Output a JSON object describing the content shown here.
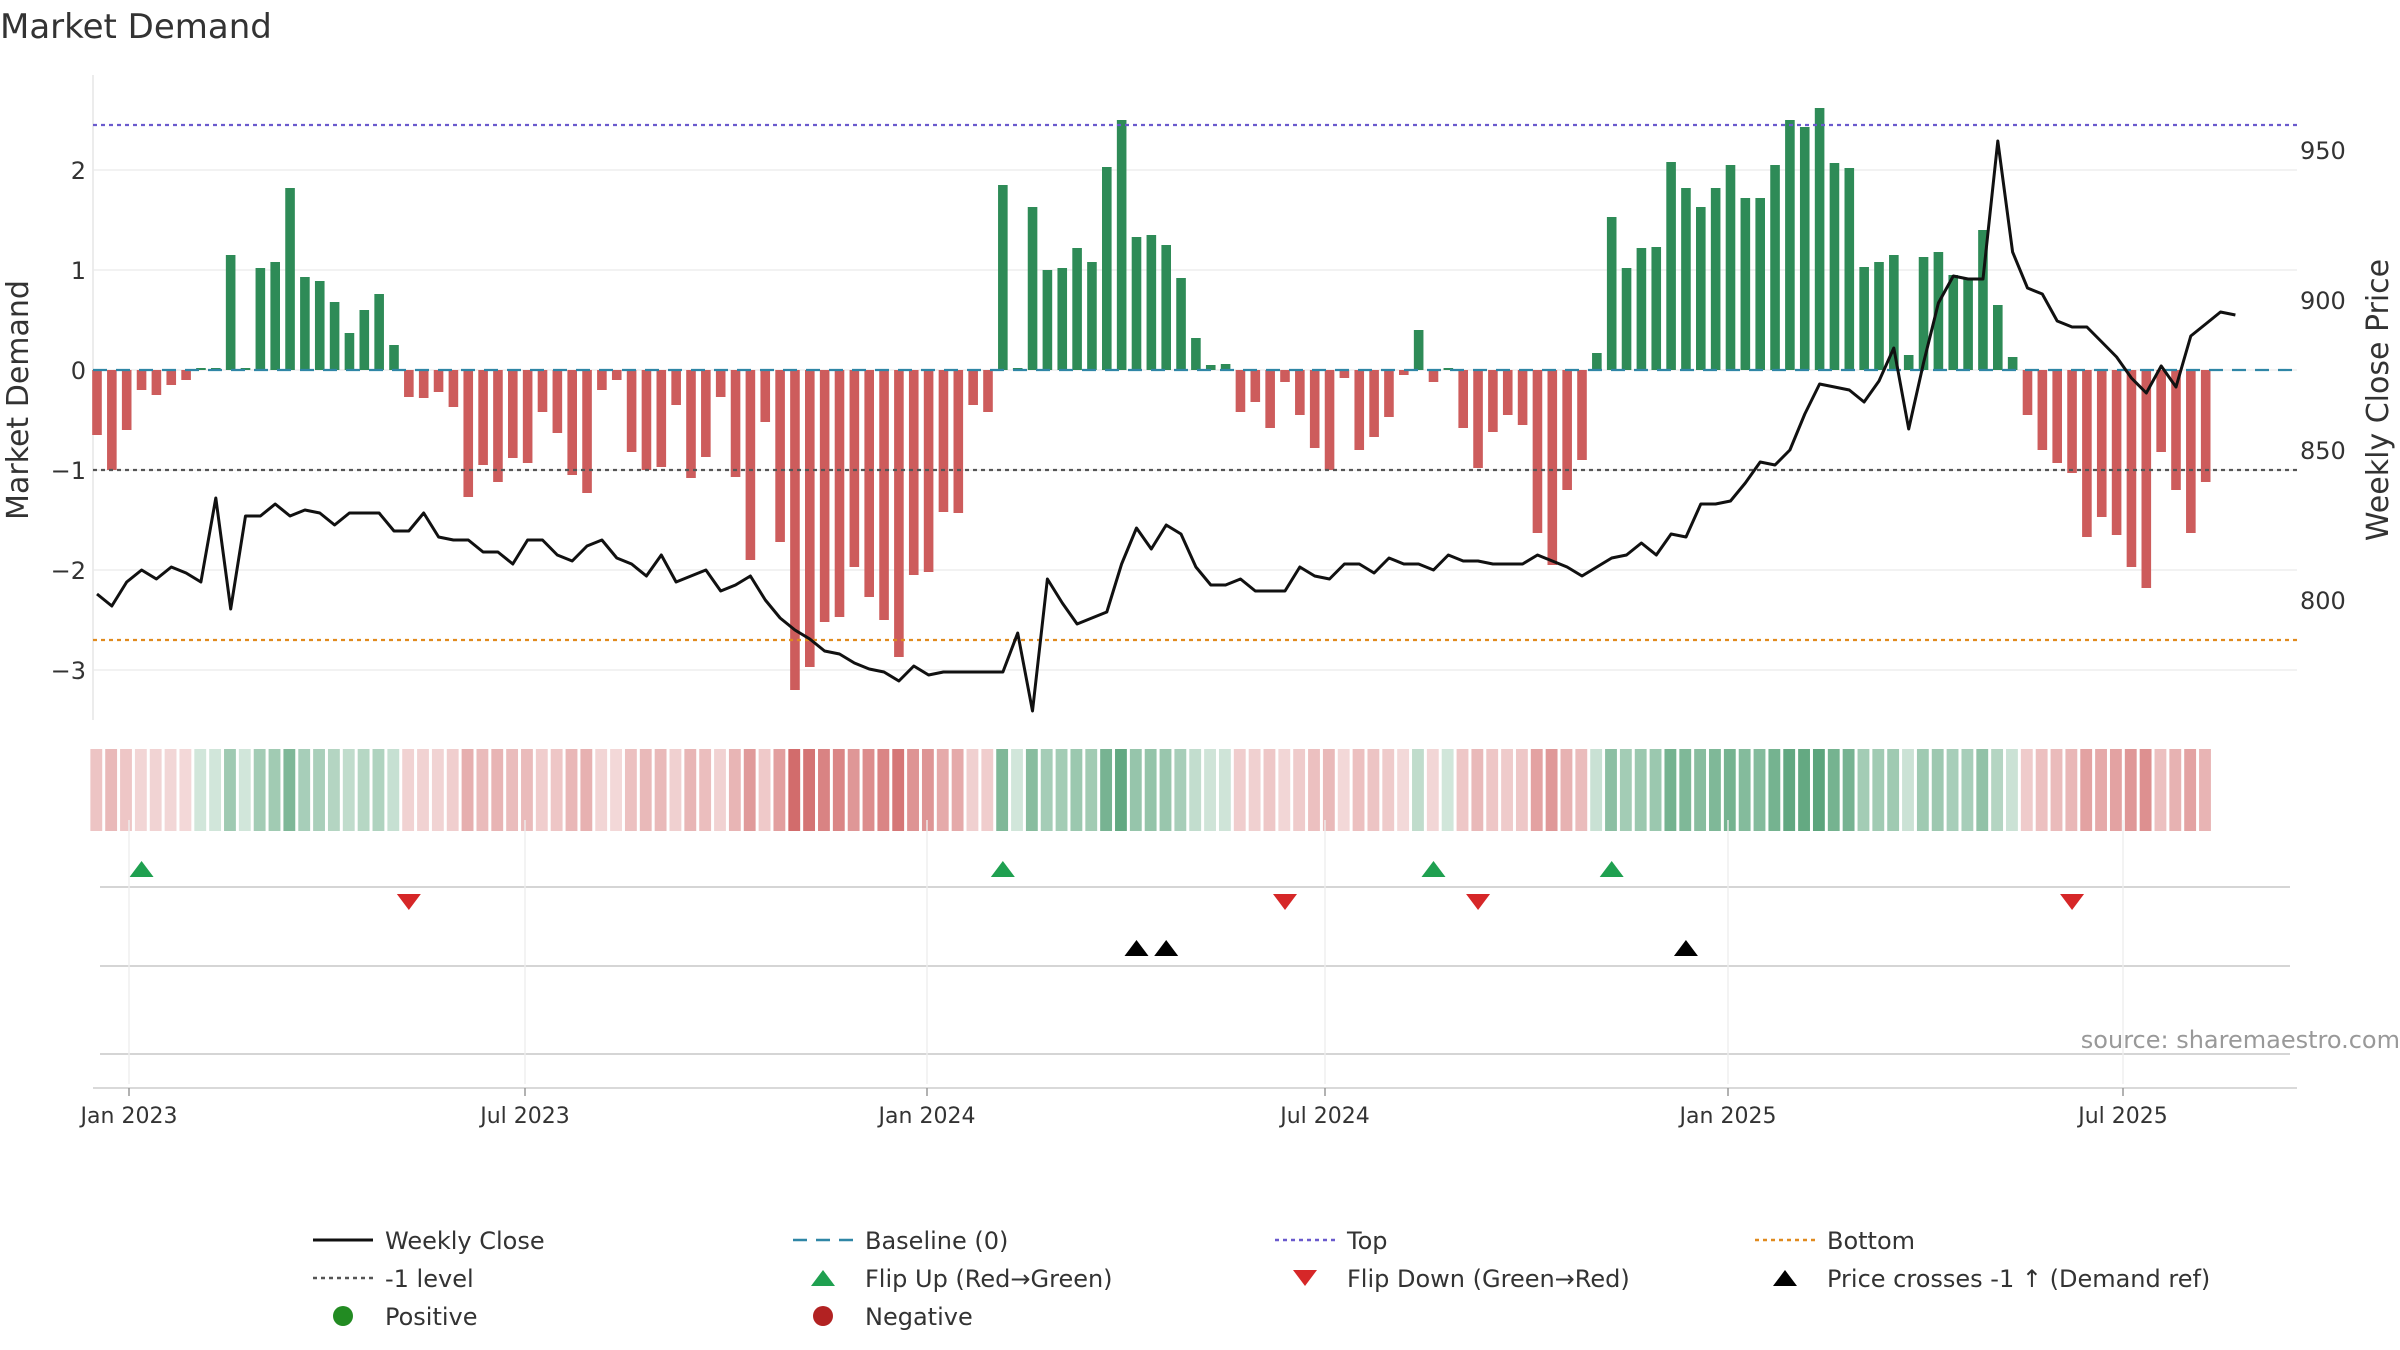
{
  "chart_data": {
    "type": "bar",
    "title": "Market Demand",
    "ylabel": "Market Demand",
    "y2label": "Weekly Close Price",
    "ylim": [
      -3.5,
      2.95
    ],
    "y2lim": [
      760,
      975
    ],
    "yticks": [
      2,
      1,
      0,
      -1,
      -2,
      -3
    ],
    "y2ticks": [
      950,
      900,
      850,
      800
    ],
    "xticks": [
      "Jan 2023",
      "Jul 2023",
      "Jan 2024",
      "Jul 2024",
      "Jan 2025",
      "Jul 2025"
    ],
    "reference_lines": {
      "top": 2.45,
      "level": -1,
      "baseline": 0,
      "bottom": -2.7
    },
    "demand": [
      -0.65,
      -1.0,
      -0.6,
      -0.2,
      -0.25,
      -0.15,
      -0.1,
      0.02,
      0.02,
      1.15,
      0.02,
      1.02,
      1.08,
      1.82,
      0.93,
      0.89,
      0.68,
      0.37,
      0.6,
      0.76,
      0.25,
      -0.27,
      -0.28,
      -0.22,
      -0.37,
      -1.27,
      -0.95,
      -1.12,
      -0.88,
      -0.93,
      -0.42,
      -0.63,
      -1.05,
      -1.23,
      -0.2,
      -0.1,
      -0.82,
      -1.0,
      -0.97,
      -0.35,
      -1.08,
      -0.87,
      -0.27,
      -1.07,
      -1.9,
      -0.52,
      -1.72,
      -3.2,
      -2.97,
      -2.52,
      -2.47,
      -1.97,
      -2.27,
      -2.5,
      -2.87,
      -2.05,
      -2.02,
      -1.42,
      -1.43,
      -0.35,
      -0.42,
      1.85,
      0.02,
      1.63,
      1.0,
      1.02,
      1.22,
      1.08,
      2.03,
      2.5,
      1.33,
      1.35,
      1.25,
      0.92,
      0.32,
      0.05,
      0.06,
      -0.42,
      -0.32,
      -0.58,
      -0.12,
      -0.45,
      -0.78,
      -1.0,
      -0.08,
      -0.8,
      -0.67,
      -0.47,
      -0.05,
      0.4,
      -0.12,
      0.02,
      -0.58,
      -0.98,
      -0.62,
      -0.45,
      -0.55,
      -1.63,
      -1.95,
      -1.2,
      -0.9,
      0.17,
      1.53,
      1.02,
      1.22,
      1.23,
      2.08,
      1.82,
      1.63,
      1.82,
      2.05,
      1.72,
      1.72,
      2.05,
      2.5,
      2.43,
      2.62,
      2.07,
      2.02,
      1.03,
      1.08,
      1.15,
      0.15,
      1.13,
      1.18,
      0.95,
      0.92,
      1.4,
      0.65,
      0.13,
      -0.45,
      -0.8,
      -0.93,
      -1.03,
      -1.67,
      -1.47,
      -1.65,
      -1.97,
      -2.18,
      -0.82,
      -1.2,
      -1.63,
      -1.12
    ],
    "close": [
      802,
      798,
      806,
      810,
      807,
      811,
      809,
      806,
      834,
      797,
      828,
      828,
      832,
      828,
      830,
      829,
      825,
      829,
      829,
      829,
      823,
      823,
      829,
      821,
      820,
      820,
      816,
      816,
      812,
      820,
      820,
      815,
      813,
      818,
      820,
      814,
      812,
      808,
      815,
      806,
      808,
      810,
      803,
      805,
      808,
      800,
      794,
      790,
      787,
      783,
      782,
      779,
      777,
      776,
      773,
      778,
      775,
      776,
      776,
      776,
      776,
      776,
      789,
      763,
      807,
      799,
      792,
      794,
      796,
      812,
      824,
      817,
      825,
      822,
      811,
      805,
      805,
      807,
      803,
      803,
      803,
      811,
      808,
      807,
      812,
      812,
      809,
      814,
      812,
      812,
      810,
      815,
      813,
      813,
      812,
      812,
      812,
      815,
      813,
      811,
      808,
      811,
      814,
      815,
      819,
      815,
      822,
      821,
      832,
      832,
      833,
      839,
      846,
      845,
      850,
      862,
      872,
      871,
      870,
      866,
      873,
      884,
      857,
      879,
      899,
      908,
      907,
      907,
      953,
      916,
      904,
      902,
      893,
      891,
      891,
      886,
      881,
      874,
      869,
      878,
      871,
      888,
      892,
      896,
      895
    ],
    "flip_up_weeks": [
      3,
      61,
      90,
      102
    ],
    "flip_down_weeks": [
      21,
      80,
      93,
      133
    ],
    "price_cross_weeks": [
      70,
      72,
      107
    ],
    "colors": {
      "positive": "#2e8b57",
      "negative": "#cd5c5c",
      "close_line": "#111111",
      "baseline": "#2f86a6",
      "top": "#6a5acd",
      "bottom": "#e08a1e",
      "level": "#555555",
      "flip_up": "#1fa050",
      "flip_down": "#d62728",
      "cross": "#000000",
      "legend_positive": "#228b22",
      "legend_negative": "#b22222"
    },
    "legend": [
      {
        "label": "Weekly Close",
        "symbol": "line-solid"
      },
      {
        "label": "Baseline (0)",
        "symbol": "line-dashed"
      },
      {
        "label": "Top",
        "symbol": "line-dotted-top"
      },
      {
        "label": "Bottom",
        "symbol": "line-dotted-bottom"
      },
      {
        "label": "-1 level",
        "symbol": "line-dotted-level"
      },
      {
        "label": "Flip Up (Red→Green)",
        "symbol": "triangle-up-green"
      },
      {
        "label": "Flip Down (Green→Red)",
        "symbol": "triangle-down-red"
      },
      {
        "label": "Price crosses -1 ↑ (Demand ref)",
        "symbol": "triangle-up-black"
      },
      {
        "label": "Positive",
        "symbol": "dot-green"
      },
      {
        "label": "Negative",
        "symbol": "dot-red"
      }
    ],
    "source": "source: sharemaestro.com"
  }
}
